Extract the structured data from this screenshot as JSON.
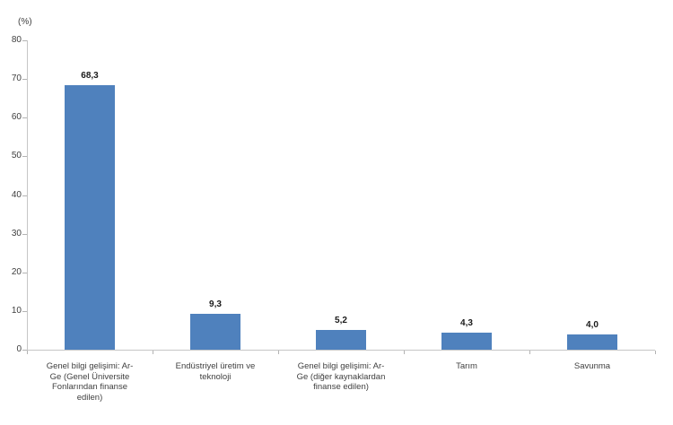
{
  "chart_data": {
    "type": "bar",
    "title": "",
    "unit_label": "(%)",
    "categories": [
      "Genel bilgi gelişimi:  Ar-\nGe (Genel Üniversite\nFonlarından finanse\nedilen)",
      "Endüstriyel üretim ve\nteknoloji",
      "Genel bilgi gelişimi: Ar-\nGe (diğer kaynaklardan\nfinanse edilen)",
      "Tarım",
      "Savunma"
    ],
    "values": [
      68.3,
      9.3,
      5.2,
      4.3,
      4.0
    ],
    "value_labels": [
      "68,3",
      "9,3",
      "5,2",
      "4,3",
      "4,0"
    ],
    "xlabel": "",
    "ylabel": "(%)",
    "ylim": [
      0,
      80
    ],
    "ytick_step": 10,
    "ytick_labels": [
      "0",
      "10",
      "20",
      "30",
      "40",
      "50",
      "60",
      "70",
      "80"
    ],
    "grid": false,
    "legend": "none",
    "colors": {
      "bar": "#4F81BD",
      "axis": "#C6C6C6",
      "tick": "#B3B3B3",
      "text": "#404040",
      "value_text": "#1A1A1A",
      "background": "#FFFFFF"
    }
  }
}
